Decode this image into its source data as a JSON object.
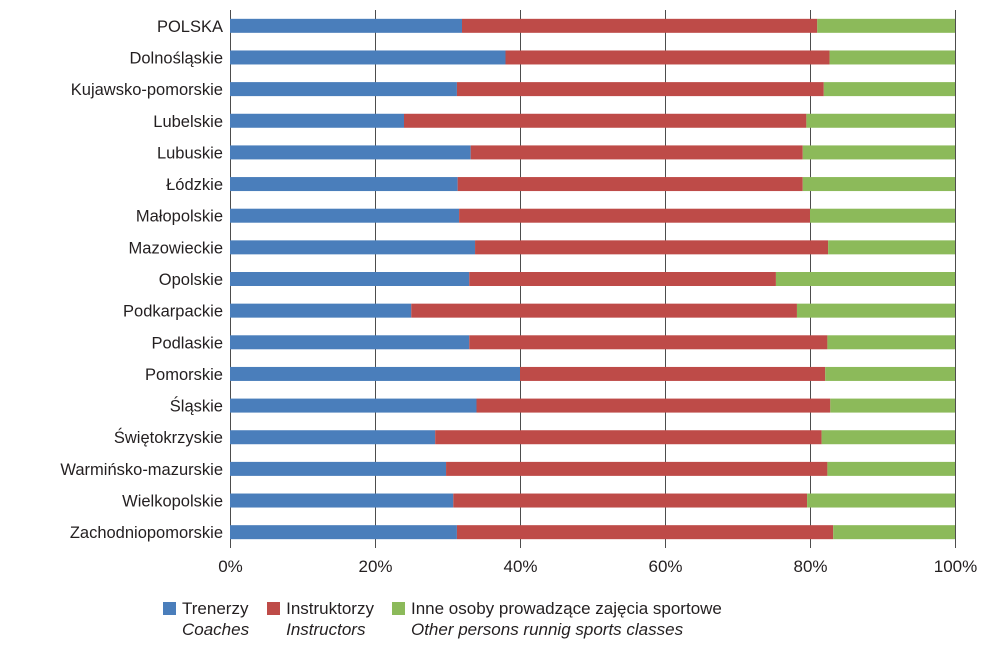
{
  "chart_data": {
    "type": "bar",
    "orientation": "horizontal",
    "stacked": true,
    "percent": true,
    "categories": [
      "POLSKA",
      "Dolnośląskie",
      "Kujawsko-pomorskie",
      "Lubelskie",
      "Lubuskie",
      "Łódzkie",
      "Małopolskie",
      "Mazowieckie",
      "Opolskie",
      "Podkarpackie",
      "Podlaskie",
      "Pomorskie",
      "Śląskie",
      "Świętokrzyskie",
      "Warmińsko-mazurskie",
      "Wielkopolskie",
      "Zachodniopomorskie"
    ],
    "series": [
      {
        "name": "Trenerzy",
        "name_en": "Coaches",
        "color": "#4a7ebb",
        "values": [
          32.0,
          38.0,
          31.3,
          24.0,
          33.2,
          31.4,
          31.6,
          33.8,
          33.0,
          25.0,
          33.0,
          40.0,
          34.0,
          28.3,
          29.8,
          30.8,
          31.3
        ]
      },
      {
        "name": "Instruktorzy",
        "name_en": "Instructors",
        "color": "#be4b48",
        "values": [
          49.0,
          44.7,
          50.6,
          55.5,
          45.8,
          47.6,
          48.4,
          48.7,
          42.3,
          53.2,
          49.4,
          42.1,
          48.8,
          53.3,
          52.6,
          48.8,
          51.9
        ]
      },
      {
        "name": "Inne osoby prowadzące zajęcia sportowe",
        "name_en": "Other persons runnig sports classes",
        "color": "#8cba5a",
        "values": [
          19.0,
          17.3,
          18.1,
          20.5,
          21.0,
          21.0,
          20.0,
          17.5,
          24.7,
          21.8,
          17.6,
          17.9,
          17.2,
          18.4,
          17.6,
          20.4,
          16.8
        ]
      }
    ],
    "x_ticks": [
      "0%",
      "20%",
      "40%",
      "60%",
      "80%",
      "100%"
    ],
    "xlim": [
      0,
      100
    ],
    "grid": "vertical",
    "legend_position": "bottom"
  }
}
